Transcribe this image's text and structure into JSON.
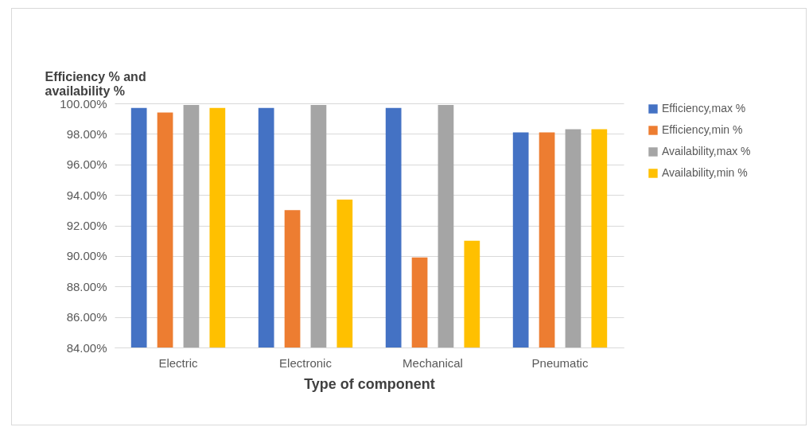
{
  "chart_data": {
    "type": "bar",
    "ylabel": "Efficiency  % and\navailability %",
    "xlabel": "Type of component",
    "categories": [
      "Electric",
      "Electronic",
      "Mechanical",
      "Pneumatic"
    ],
    "series": [
      {
        "name": "Efficiency,max %",
        "color": "#4472c4",
        "values": [
          99.7,
          99.7,
          99.7,
          98.1
        ]
      },
      {
        "name": "Efficiency,min %",
        "color": "#ed7d31",
        "values": [
          99.4,
          93.0,
          89.9,
          98.1
        ]
      },
      {
        "name": "Availability,max %",
        "color": "#a5a5a5",
        "values": [
          99.9,
          99.9,
          99.9,
          98.3
        ]
      },
      {
        "name": "Availability,min %",
        "color": "#ffc000",
        "values": [
          99.7,
          93.7,
          91.0,
          98.3
        ]
      }
    ],
    "ylim": [
      84,
      100
    ],
    "yticks": [
      {
        "value": 84,
        "label": "84.00%"
      },
      {
        "value": 86,
        "label": "86.00%"
      },
      {
        "value": 88,
        "label": "88.00%"
      },
      {
        "value": 90,
        "label": "90.00%"
      },
      {
        "value": 92,
        "label": "92.00%"
      },
      {
        "value": 94,
        "label": "94.00%"
      },
      {
        "value": 96,
        "label": "96.00%"
      },
      {
        "value": 98,
        "label": "98.00%"
      },
      {
        "value": 100,
        "label": "100.00%"
      }
    ],
    "grid": "y",
    "legend": "right"
  }
}
